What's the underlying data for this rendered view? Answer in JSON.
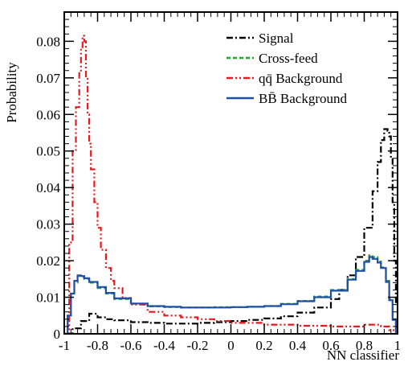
{
  "chart_data": {
    "type": "line",
    "title": "",
    "xlabel": "NN classifier",
    "ylabel": "Probability",
    "xlim": [
      -1,
      1
    ],
    "ylim": [
      0,
      0.088
    ],
    "grid": false,
    "legend_placement": "top-right",
    "xticks": [
      -1,
      -0.8,
      -0.6,
      -0.4,
      -0.2,
      0,
      0.2,
      0.4,
      0.6,
      0.8,
      1
    ],
    "xtick_labels": [
      "-1",
      "-0.8",
      "-0.6",
      "-0.4",
      "-0.2",
      "0",
      "0.2",
      "0.4",
      "0.6",
      "0.8",
      "1"
    ],
    "yticks": [
      0,
      0.01,
      0.02,
      0.03,
      0.04,
      0.05,
      0.06,
      0.07,
      0.08
    ],
    "ytick_labels": [
      "0",
      "0.01",
      "0.02",
      "0.03",
      "0.04",
      "0.05",
      "0.06",
      "0.07",
      "0.08"
    ],
    "series": [
      {
        "name": "Signal",
        "legend_label": "Signal",
        "color": "#000000",
        "dash": "8,3,2,3",
        "x": [
          -0.98,
          -0.95,
          -0.9,
          -0.85,
          -0.8,
          -0.75,
          -0.7,
          -0.6,
          -0.5,
          -0.4,
          -0.3,
          -0.2,
          -0.1,
          0.0,
          0.1,
          0.2,
          0.3,
          0.4,
          0.5,
          0.6,
          0.65,
          0.7,
          0.75,
          0.8,
          0.85,
          0.88,
          0.9,
          0.92,
          0.94,
          0.95,
          0.96,
          0.97,
          0.98,
          0.99,
          1.0
        ],
        "y": [
          0.0,
          0.0015,
          0.0035,
          0.0055,
          0.0045,
          0.004,
          0.0037,
          0.0032,
          0.003,
          0.0028,
          0.0028,
          0.003,
          0.0032,
          0.0035,
          0.0038,
          0.0042,
          0.0048,
          0.0058,
          0.0072,
          0.0095,
          0.012,
          0.016,
          0.021,
          0.029,
          0.039,
          0.047,
          0.053,
          0.056,
          0.0555,
          0.054,
          0.048,
          0.036,
          0.02,
          0.008,
          0.0
        ]
      },
      {
        "name": "Cross-feed",
        "legend_label": "Cross-feed",
        "color": "#2ea02e",
        "dash": "5,3",
        "x": [
          -1.0,
          -0.98,
          -0.96,
          -0.94,
          -0.92,
          -0.9,
          -0.88,
          -0.85,
          -0.8,
          -0.75,
          -0.7,
          -0.6,
          -0.5,
          -0.4,
          -0.3,
          -0.2,
          -0.1,
          0.0,
          0.1,
          0.2,
          0.3,
          0.4,
          0.5,
          0.6,
          0.7,
          0.75,
          0.8,
          0.83,
          0.85,
          0.88,
          0.9,
          0.93,
          0.95,
          0.97,
          0.99,
          1.0
        ],
        "y": [
          0.0,
          0.005,
          0.011,
          0.014,
          0.0158,
          0.0155,
          0.015,
          0.014,
          0.0125,
          0.011,
          0.0095,
          0.0082,
          0.0075,
          0.0073,
          0.0072,
          0.0072,
          0.0073,
          0.0073,
          0.0074,
          0.0076,
          0.0082,
          0.009,
          0.0102,
          0.012,
          0.015,
          0.0175,
          0.02,
          0.0215,
          0.021,
          0.0198,
          0.0182,
          0.0145,
          0.0095,
          0.004,
          0.0005,
          0.0
        ]
      },
      {
        "name": "qq Background",
        "legend_label": "qq̄ Background",
        "color": "#e8191e",
        "dash": "8,3,2,3,2,3",
        "x": [
          -1.0,
          -0.97,
          -0.95,
          -0.93,
          -0.91,
          -0.9,
          -0.89,
          -0.88,
          -0.87,
          -0.86,
          -0.85,
          -0.84,
          -0.82,
          -0.8,
          -0.78,
          -0.75,
          -0.72,
          -0.7,
          -0.65,
          -0.6,
          -0.5,
          -0.4,
          -0.3,
          -0.2,
          -0.1,
          0.0,
          0.2,
          0.4,
          0.6,
          0.8,
          0.9,
          0.95,
          1.0
        ],
        "y": [
          0.0,
          0.025,
          0.05,
          0.062,
          0.072,
          0.078,
          0.0815,
          0.08,
          0.07,
          0.06,
          0.052,
          0.045,
          0.036,
          0.029,
          0.023,
          0.018,
          0.0145,
          0.0125,
          0.0098,
          0.008,
          0.006,
          0.005,
          0.0045,
          0.004,
          0.0035,
          0.003,
          0.0025,
          0.0022,
          0.002,
          0.0025,
          0.002,
          0.001,
          0.0
        ]
      },
      {
        "name": "BB Background",
        "legend_label": "BB̄ Background",
        "color": "#1f4fa8",
        "dash": "",
        "x": [
          -1.0,
          -0.98,
          -0.96,
          -0.94,
          -0.92,
          -0.9,
          -0.88,
          -0.85,
          -0.8,
          -0.75,
          -0.7,
          -0.6,
          -0.5,
          -0.4,
          -0.3,
          -0.2,
          -0.1,
          0.0,
          0.1,
          0.2,
          0.3,
          0.4,
          0.5,
          0.6,
          0.7,
          0.75,
          0.8,
          0.83,
          0.85,
          0.88,
          0.9,
          0.93,
          0.95,
          0.97,
          0.99,
          1.0
        ],
        "y": [
          0.0,
          0.005,
          0.011,
          0.0145,
          0.016,
          0.0158,
          0.0152,
          0.0142,
          0.0128,
          0.0112,
          0.0097,
          0.0083,
          0.0076,
          0.0074,
          0.0072,
          0.0072,
          0.0072,
          0.0073,
          0.0074,
          0.0076,
          0.0081,
          0.0089,
          0.01,
          0.0118,
          0.0148,
          0.0172,
          0.0197,
          0.021,
          0.0205,
          0.0195,
          0.018,
          0.0142,
          0.0092,
          0.0038,
          0.0005,
          0.0
        ]
      }
    ]
  }
}
